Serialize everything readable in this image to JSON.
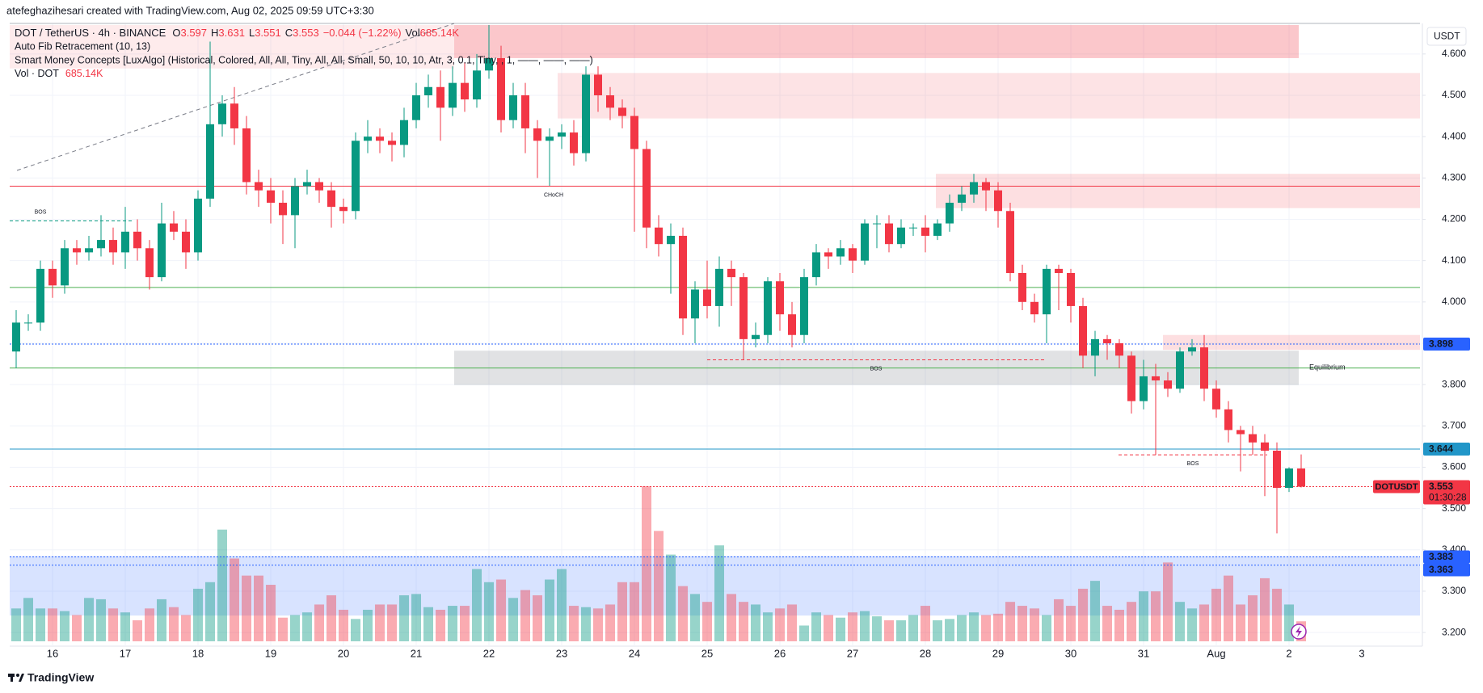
{
  "header": {
    "attribution": "atefeghazihesari created with TradingView.com, Aug 02, 2025 09:59 UTC+3:30"
  },
  "chart_data": {
    "type": "candlestick",
    "currency": "USDT",
    "legend": {
      "symbol": "DOT / TetherUS · 4h · BINANCE",
      "keys": [
        "O",
        "H",
        "L",
        "C"
      ],
      "change": "−0.044 (−1.22%)",
      "vol_key": "Vol"
    },
    "indicators": [
      "Auto Fib Retracement (10, 13)",
      "Smart Money Concepts [LuxAlgo] (Historical, Colored, All, All, Tiny, All, All, Small, 50, 10, 10, Atr, 3, 0.1, Tiny, , 1, ——, ——, ——)"
    ],
    "up_color": "#089981",
    "down_color": "#f23645",
    "categories": [
      null,
      null,
      null,
      "16",
      null,
      null,
      null,
      null,
      null,
      "17",
      null,
      null,
      null,
      null,
      null,
      "18",
      null,
      null,
      null,
      null,
      null,
      "19",
      null,
      null,
      null,
      null,
      null,
      "20",
      null,
      null,
      null,
      null,
      null,
      "21",
      null,
      null,
      null,
      null,
      null,
      "22",
      null,
      null,
      null,
      null,
      null,
      "23",
      null,
      null,
      null,
      null,
      null,
      "24",
      null,
      null,
      null,
      null,
      null,
      "25",
      null,
      null,
      null,
      null,
      null,
      "26",
      null,
      null,
      null,
      null,
      null,
      "27",
      null,
      null,
      null,
      null,
      null,
      "28",
      null,
      null,
      null,
      null,
      null,
      "29",
      null,
      null,
      null,
      null,
      null,
      "30",
      null,
      null,
      null,
      null,
      null,
      "31",
      null,
      null,
      null,
      null,
      null,
      "Aug",
      null,
      null,
      null,
      null,
      null,
      "2",
      null
    ],
    "future_day_label": "3",
    "candles": {
      "open": [
        3.88,
        3.95,
        3.95,
        4.08,
        4.04,
        4.13,
        4.12,
        4.13,
        4.15,
        4.12,
        4.17,
        4.13,
        4.06,
        4.19,
        4.17,
        4.12,
        4.25,
        4.43,
        4.48,
        4.42,
        4.29,
        4.27,
        4.24,
        4.21,
        4.28,
        4.29,
        4.27,
        4.23,
        4.22,
        4.39,
        4.4,
        4.39,
        4.38,
        4.44,
        4.5,
        4.52,
        4.47,
        4.53,
        4.49,
        4.56,
        4.59,
        4.44,
        4.5,
        4.42,
        4.39,
        4.4,
        4.41,
        4.36,
        4.55,
        4.5,
        4.47,
        4.45,
        4.37,
        4.18,
        4.14,
        4.16,
        3.96,
        4.03,
        3.99,
        4.08,
        4.06,
        3.91,
        3.92,
        4.05,
        3.97,
        3.92,
        4.06,
        4.12,
        4.11,
        4.13,
        4.1,
        4.19,
        4.19,
        4.14,
        4.18,
        4.18,
        4.16,
        4.19,
        4.24,
        4.26,
        4.29,
        4.27,
        4.22,
        4.07,
        4.0,
        3.97,
        4.08,
        4.07,
        3.99,
        3.87,
        3.91,
        3.9,
        3.87,
        3.76,
        3.82,
        3.81,
        3.79,
        3.88,
        3.89,
        3.79,
        3.74,
        3.69,
        3.68,
        3.66,
        3.64,
        3.55,
        3.597
      ],
      "high": [
        3.98,
        3.97,
        4.1,
        4.1,
        4.15,
        4.15,
        4.16,
        4.21,
        4.18,
        4.23,
        4.2,
        4.15,
        4.24,
        4.22,
        4.2,
        4.27,
        4.63,
        4.5,
        4.52,
        4.45,
        4.32,
        4.3,
        4.27,
        4.3,
        4.32,
        4.3,
        4.29,
        4.25,
        4.41,
        4.44,
        4.42,
        4.41,
        4.47,
        4.53,
        4.55,
        4.56,
        4.57,
        4.58,
        4.6,
        4.67,
        4.62,
        4.53,
        4.53,
        4.44,
        4.42,
        4.43,
        4.44,
        4.57,
        4.57,
        4.52,
        4.49,
        4.47,
        4.39,
        4.21,
        4.19,
        4.18,
        4.05,
        4.1,
        4.11,
        4.1,
        4.07,
        3.95,
        4.06,
        4.07,
        4.0,
        4.08,
        4.14,
        4.13,
        4.15,
        4.14,
        4.2,
        4.21,
        4.21,
        4.2,
        4.19,
        4.21,
        4.2,
        4.26,
        4.28,
        4.31,
        4.3,
        4.29,
        4.24,
        4.09,
        4.02,
        4.09,
        4.09,
        4.08,
        4.01,
        3.93,
        3.92,
        3.91,
        3.88,
        3.86,
        3.85,
        3.83,
        3.89,
        3.91,
        3.92,
        3.81,
        3.76,
        3.7,
        3.7,
        3.68,
        3.66,
        3.6,
        3.631
      ],
      "low": [
        3.84,
        3.93,
        3.93,
        4.01,
        4.02,
        4.09,
        4.1,
        4.11,
        4.09,
        4.08,
        4.1,
        4.03,
        4.05,
        4.15,
        4.08,
        4.1,
        4.23,
        4.4,
        4.38,
        4.26,
        4.23,
        4.19,
        4.14,
        4.13,
        4.26,
        4.24,
        4.18,
        4.19,
        4.2,
        4.36,
        4.36,
        4.34,
        4.35,
        4.42,
        4.47,
        4.39,
        4.45,
        4.46,
        4.47,
        4.54,
        4.41,
        4.42,
        4.36,
        4.3,
        4.28,
        4.37,
        4.33,
        4.34,
        4.46,
        4.44,
        4.42,
        4.17,
        4.13,
        4.11,
        4.02,
        3.92,
        3.9,
        3.96,
        3.94,
        3.99,
        3.86,
        3.89,
        3.9,
        3.93,
        3.89,
        3.9,
        4.04,
        4.08,
        4.09,
        4.07,
        4.09,
        4.13,
        4.12,
        4.13,
        4.16,
        4.12,
        4.15,
        4.17,
        4.22,
        4.24,
        4.22,
        4.18,
        4.05,
        3.98,
        3.95,
        3.9,
        3.98,
        3.95,
        3.84,
        3.82,
        3.86,
        3.84,
        3.73,
        3.74,
        3.63,
        3.77,
        3.78,
        3.87,
        3.76,
        3.72,
        3.66,
        3.59,
        3.63,
        3.53,
        3.44,
        3.54,
        3.551
      ],
      "close": [
        3.95,
        3.95,
        4.08,
        4.04,
        4.13,
        4.12,
        4.13,
        4.15,
        4.12,
        4.17,
        4.13,
        4.06,
        4.19,
        4.17,
        4.12,
        4.25,
        4.43,
        4.48,
        4.42,
        4.29,
        4.27,
        4.24,
        4.21,
        4.28,
        4.29,
        4.27,
        4.23,
        4.22,
        4.39,
        4.4,
        4.39,
        4.38,
        4.44,
        4.5,
        4.52,
        4.47,
        4.53,
        4.49,
        4.56,
        4.59,
        4.44,
        4.5,
        4.42,
        4.39,
        4.4,
        4.41,
        4.36,
        4.55,
        4.5,
        4.47,
        4.45,
        4.37,
        4.18,
        4.14,
        4.16,
        3.96,
        4.03,
        3.99,
        4.08,
        4.06,
        3.91,
        3.92,
        4.05,
        3.97,
        3.92,
        4.06,
        4.12,
        4.11,
        4.13,
        4.1,
        4.19,
        4.19,
        4.14,
        4.18,
        4.18,
        4.16,
        4.19,
        4.24,
        4.26,
        4.29,
        4.27,
        4.22,
        4.07,
        4.0,
        3.97,
        4.08,
        4.07,
        3.99,
        3.87,
        3.91,
        3.9,
        3.87,
        3.76,
        3.82,
        3.81,
        3.79,
        3.88,
        3.89,
        3.79,
        3.74,
        3.69,
        3.68,
        3.66,
        3.64,
        3.55,
        3.597,
        3.553
      ]
    },
    "volume": {
      "name": "Vol · DOT",
      "values": [
        1125000,
        1485000,
        1125000,
        1125000,
        1035000,
        900000,
        1485000,
        1440000,
        1125000,
        990000,
        720000,
        1125000,
        1440000,
        1170000,
        900000,
        1800000,
        2025000,
        3825000,
        2835000,
        2250000,
        2250000,
        1935000,
        810000,
        900000,
        990000,
        1260000,
        1575000,
        1080000,
        765000,
        1080000,
        1260000,
        1260000,
        1575000,
        1620000,
        1170000,
        1080000,
        1215000,
        1215000,
        2475000,
        2025000,
        2115000,
        1485000,
        1755000,
        1575000,
        2115000,
        2475000,
        1215000,
        1170000,
        1125000,
        1260000,
        2025000,
        2025000,
        5310000,
        3780000,
        2970000,
        1890000,
        1620000,
        1350000,
        3285000,
        1620000,
        1350000,
        1260000,
        990000,
        1125000,
        1260000,
        540000,
        990000,
        900000,
        810000,
        990000,
        1035000,
        855000,
        720000,
        720000,
        900000,
        1215000,
        720000,
        765000,
        900000,
        990000,
        900000,
        945000,
        1350000,
        1215000,
        1125000,
        900000,
        1440000,
        1215000,
        1800000,
        2070000,
        1215000,
        1080000,
        1350000,
        1710000,
        1710000,
        2700000,
        1350000,
        1125000,
        1260000,
        1800000,
        2250000,
        1260000,
        1575000,
        2160000,
        1800000,
        1260000,
        685140
      ],
      "value_labels": [
        null,
        null,
        null,
        null,
        null,
        null,
        null,
        null,
        null,
        null,
        null,
        null,
        null,
        null,
        null,
        null,
        null,
        null,
        null,
        null,
        null,
        null,
        null,
        null,
        null,
        null,
        null,
        null,
        null,
        null,
        null,
        null,
        null,
        null,
        null,
        null,
        null,
        null,
        null,
        null,
        null,
        null,
        null,
        null,
        null,
        null,
        null,
        null,
        null,
        null,
        null,
        null,
        null,
        null,
        null,
        null,
        null,
        null,
        null,
        null,
        null,
        null,
        null,
        null,
        null,
        null,
        null,
        null,
        null,
        null,
        null,
        null,
        null,
        null,
        null,
        null,
        null,
        null,
        null,
        null,
        null,
        null,
        null,
        null,
        null,
        null,
        null,
        null,
        null,
        null,
        null,
        null,
        null,
        null,
        null,
        null,
        null,
        null,
        null,
        null,
        null,
        null,
        null,
        null,
        null,
        null,
        "685.14K"
      ]
    },
    "ylim": [
      3.167,
      4.672
    ],
    "yticks": [
      {
        "value": 3.2,
        "label": "3.200"
      },
      {
        "value": 3.3,
        "label": "3.300"
      },
      {
        "value": 3.4,
        "label": "3.400"
      },
      {
        "value": 3.5,
        "label": "3.500"
      },
      {
        "value": 3.6,
        "label": "3.600"
      },
      {
        "value": 3.7,
        "label": "3.700"
      },
      {
        "value": 3.8,
        "label": "3.800"
      },
      {
        "value": 3.9,
        "label": "3.900"
      },
      {
        "value": 4.0,
        "label": "4.000"
      },
      {
        "value": 4.1,
        "label": "4.100"
      },
      {
        "value": 4.2,
        "label": "4.200"
      },
      {
        "value": 4.3,
        "label": "4.300"
      },
      {
        "value": 4.4,
        "label": "4.400"
      },
      {
        "value": 4.5,
        "label": "4.500"
      },
      {
        "value": 4.6,
        "label": "4.600"
      }
    ],
    "grid": true,
    "zones": [
      {
        "top": 4.67,
        "bottom": 4.565,
        "color": "rgba(242,54,69,0.10)"
      },
      {
        "top": 4.67,
        "bottom": 4.59,
        "color": "rgba(242,54,69,0.28)"
      },
      {
        "top": 4.554,
        "bottom": 4.444,
        "color": "rgba(242,54,69,0.14)"
      },
      {
        "top": 4.31,
        "bottom": 4.227,
        "color": "rgba(242,54,69,0.16)"
      },
      {
        "top": 3.92,
        "bottom": 3.884,
        "color": "rgba(242,54,69,0.16)"
      },
      {
        "top": 3.882,
        "bottom": 3.799,
        "color": "rgba(120,123,134,0.22)"
      },
      {
        "top": 3.385,
        "bottom": 3.241,
        "color": "rgba(41,98,255,0.18)"
      }
    ],
    "levels": [
      {
        "price": 4.28,
        "color": "#f23645",
        "style": "solid",
        "badge": false
      },
      {
        "price": 4.035,
        "color": "#4caf50",
        "style": "solid",
        "badge": false
      },
      {
        "price": 3.84,
        "color": "#4caf50",
        "style": "solid",
        "badge": false
      },
      {
        "price": 3.898,
        "color": "#2962ff",
        "style": "dotted",
        "badge": true
      },
      {
        "price": 3.644,
        "color": "#2196c8",
        "style": "solid",
        "badge": true
      },
      {
        "price": 3.553,
        "color": "#f23645",
        "style": "dotted",
        "badge": false
      },
      {
        "price": 3.383,
        "color": "#2962ff",
        "style": "dotted",
        "badge": true
      },
      {
        "price": 3.363,
        "color": "#2962ff",
        "style": "dotted",
        "badge": true
      }
    ],
    "structure": [
      {
        "text": "BOS",
        "price": 4.196,
        "color": "#089981"
      },
      {
        "text": "CHoCH",
        "price": 4.28,
        "color": "#f23645"
      },
      {
        "text": "BOS",
        "price": 3.86,
        "color": "#f23645"
      },
      {
        "text": "BOS",
        "price": 3.63,
        "color": "#f23645"
      }
    ],
    "equilibrium_label": "Equilibrium",
    "last_price_badge": {
      "symbol": "DOTUSDT",
      "countdown": "01:30:28"
    }
  },
  "footer": {
    "logo": "TradingView"
  }
}
